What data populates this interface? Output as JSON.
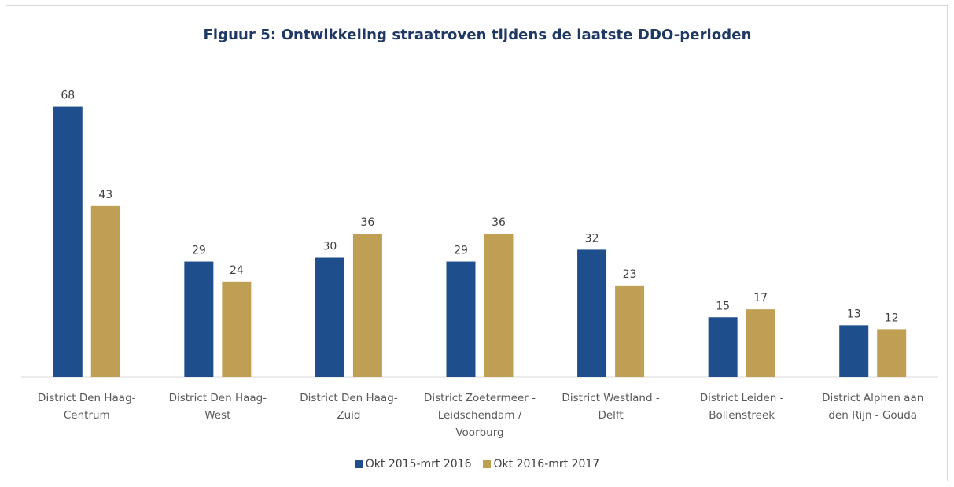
{
  "chart_data": {
    "type": "bar",
    "title": "Figuur 5: Ontwikkeling straatroven tijdens de laatste DDO-perioden",
    "categories": [
      [
        "District Den Haag-",
        "Centrum"
      ],
      [
        "District Den Haag-",
        "West"
      ],
      [
        "District Den Haag-",
        "Zuid"
      ],
      [
        "District Zoetermeer -",
        "Leidschendam /",
        "Voorburg"
      ],
      [
        "District Westland -",
        "Delft"
      ],
      [
        "District Leiden -",
        "Bollenstreek"
      ],
      [
        "District Alphen aan",
        "den Rijn - Gouda"
      ]
    ],
    "series": [
      {
        "name": "Okt 2015-mrt 2016",
        "color": "#1f4e8c",
        "values": [
          68,
          29,
          30,
          29,
          32,
          15,
          13
        ]
      },
      {
        "name": "Okt 2016-mrt 2017",
        "color": "#bf9f54",
        "values": [
          43,
          24,
          36,
          36,
          23,
          17,
          12
        ]
      }
    ],
    "ylim": [
      0,
      70
    ],
    "grid": false,
    "data_labels": true,
    "legend_position": "bottom"
  }
}
